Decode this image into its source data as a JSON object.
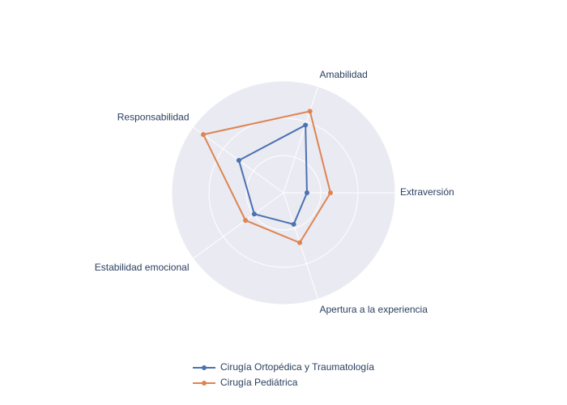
{
  "chart_data": {
    "type": "radar",
    "categories": [
      "Extraversión",
      "Amabilidad",
      "Responsabilidad",
      "Estabilidad emocional",
      "Apertura a la experiencia"
    ],
    "rlim": [
      0,
      3
    ],
    "rticks": [
      1,
      2,
      3
    ],
    "grid": true,
    "series": [
      {
        "name": "Cirugía Ortopédica y Traumatología",
        "color": "#4c72b0",
        "values": [
          0.63,
          1.91,
          1.48,
          0.97,
          0.89
        ]
      },
      {
        "name": "Cirugía Pediátrica",
        "color": "#dd8452",
        "values": [
          1.26,
          2.3,
          2.66,
          1.26,
          1.41
        ]
      }
    ]
  }
}
